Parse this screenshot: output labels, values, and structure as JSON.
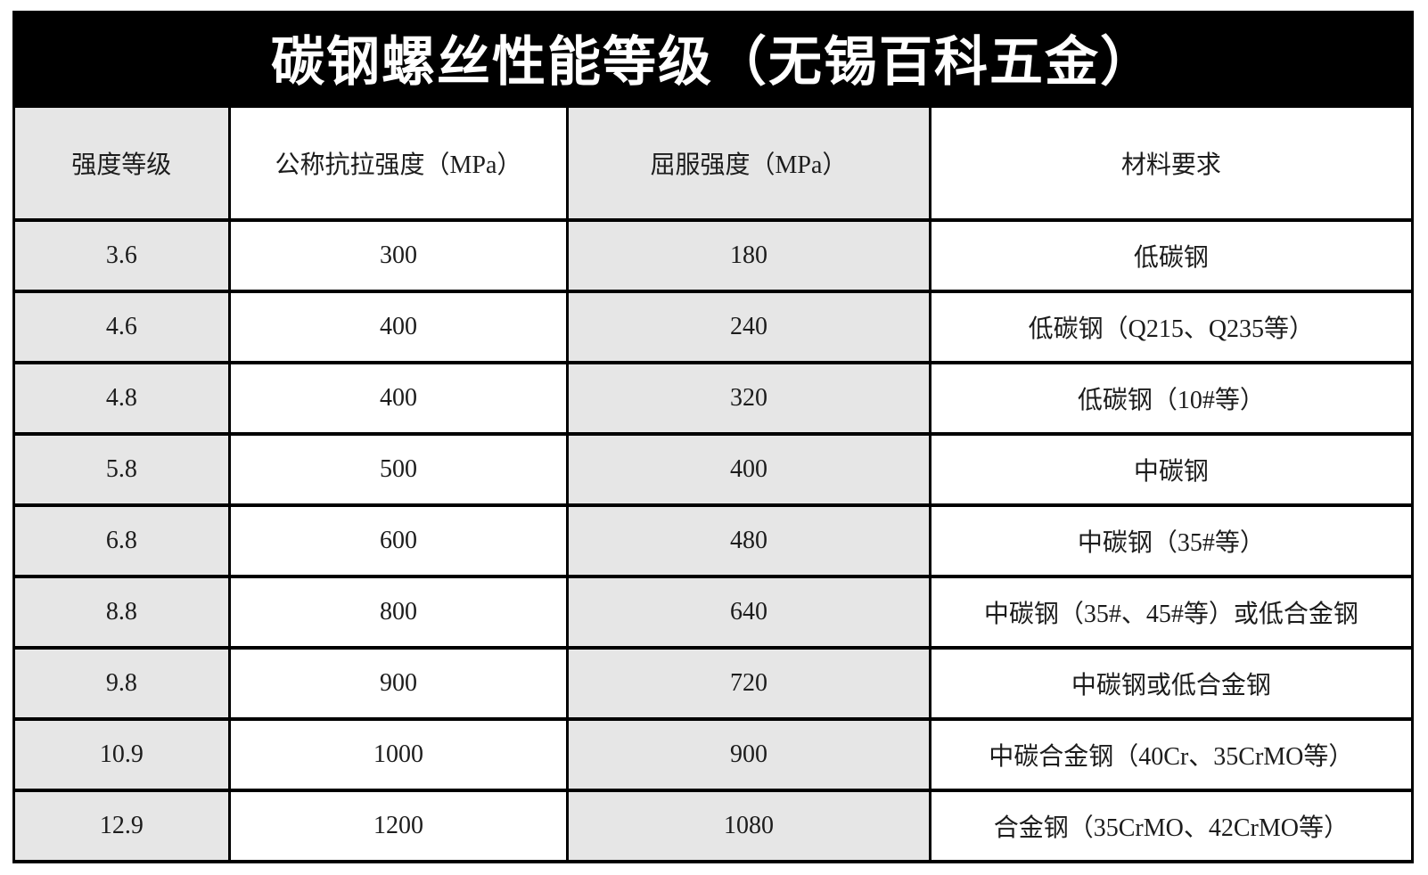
{
  "title": "碳钢螺丝性能等级（无锡百科五金）",
  "chart_data": {
    "type": "table",
    "title": "碳钢螺丝性能等级（无锡百科五金）",
    "columns": [
      "强度等级",
      "公称抗拉强度（MPa）",
      "屈服强度（MPa）",
      "材料要求"
    ],
    "rows": [
      [
        "3.6",
        "300",
        "180",
        "低碳钢"
      ],
      [
        "4.6",
        "400",
        "240",
        "低碳钢（Q215、Q235等）"
      ],
      [
        "4.8",
        "400",
        "320",
        "低碳钢（10#等）"
      ],
      [
        "5.8",
        "500",
        "400",
        "中碳钢"
      ],
      [
        "6.8",
        "600",
        "480",
        "中碳钢（35#等）"
      ],
      [
        "8.8",
        "800",
        "640",
        "中碳钢（35#、45#等）或低合金钢"
      ],
      [
        "9.8",
        "900",
        "720",
        "中碳钢或低合金钢"
      ],
      [
        "10.9",
        "1000",
        "900",
        "中碳合金钢（40Cr、35CrMO等）"
      ],
      [
        "12.9",
        "1200",
        "1080",
        "合金钢（35CrMO、42CrMO等）"
      ]
    ],
    "layout": {
      "shaded_columns": [
        0,
        2
      ],
      "column_width_percent": [
        15.4,
        24.2,
        25.9,
        34.5
      ]
    }
  },
  "colors": {
    "banner_bg": "#000000",
    "banner_text": "#ffffff",
    "shaded_column_bg": "#e6e6e6",
    "plain_column_bg": "#ffffff",
    "border": "#000000",
    "body_text": "#1c1c1c"
  }
}
